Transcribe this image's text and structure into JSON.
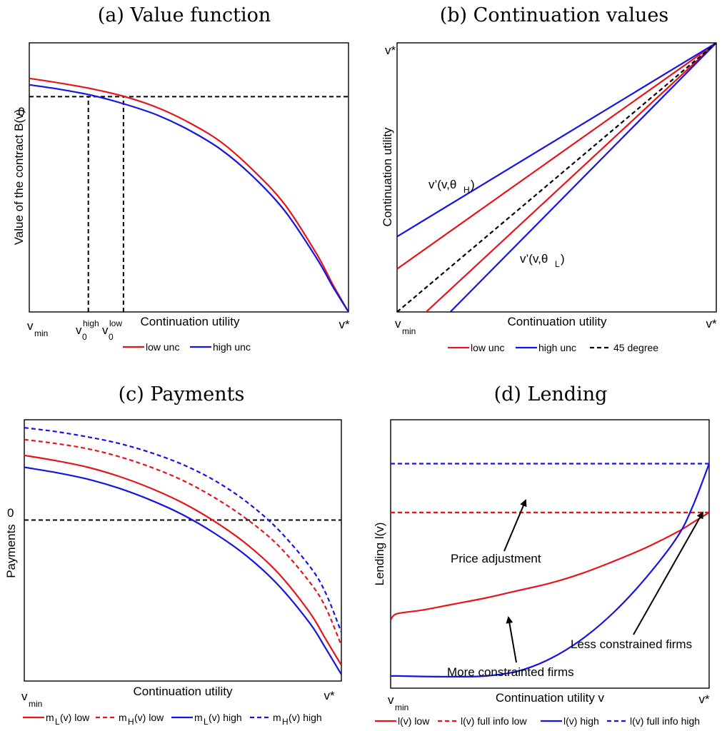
{
  "colors": {
    "low": "#e8141c",
    "high": "#1414e6",
    "ref": "#000000"
  },
  "chart_data": [
    {
      "type": "line",
      "title": "(a) Value function",
      "xlabel": "Continuation utility",
      "ylabel": "Value of the contract B(v)",
      "x_ticks": {
        "vmin": "v",
        "vmin_sub": "min",
        "vstar": "v*",
        "v0high": "v",
        "v0high_sup": "high",
        "v0high_sub": "0",
        "v0low": "v",
        "v0low_sup": "low",
        "v0low_sub": "0"
      },
      "y_ticks": {
        "zero": "0"
      },
      "x": [
        0,
        0.1,
        0.2,
        0.3,
        0.4,
        0.5,
        0.6,
        0.7,
        0.8,
        0.9,
        0.95,
        1.0
      ],
      "series": [
        {
          "name": "low unc",
          "color": "low",
          "style": "solid",
          "values": [
            0.085,
            0.062,
            0.035,
            0.0,
            -0.05,
            -0.12,
            -0.21,
            -0.34,
            -0.5,
            -0.73,
            -0.87,
            -1.0
          ]
        },
        {
          "name": "high unc",
          "color": "high",
          "style": "solid",
          "values": [
            0.055,
            0.033,
            0.005,
            -0.035,
            -0.085,
            -0.155,
            -0.245,
            -0.37,
            -0.53,
            -0.75,
            -0.88,
            -1.0
          ]
        }
      ],
      "reference_lines": [
        {
          "type": "hline",
          "y": 0,
          "style": "dashed"
        },
        {
          "type": "vline",
          "x": 0.185,
          "label": "v0high",
          "style": "dashed"
        },
        {
          "type": "vline",
          "x": 0.295,
          "label": "v0low",
          "style": "dashed"
        }
      ],
      "legend": [
        "low unc",
        "high unc"
      ],
      "legend_placement": "bottom"
    },
    {
      "type": "line",
      "title": "(b) Continuation values",
      "xlabel": "Continuation utility",
      "ylabel": "Continuation utility",
      "x_ticks": {
        "vmin": "v",
        "vmin_sub": "min",
        "vstar": "v*"
      },
      "y_ticks": {
        "vstar": "v*"
      },
      "x": [
        0,
        1
      ],
      "series": [
        {
          "name": "low unc θH",
          "color": "low",
          "style": "solid",
          "values": [
            0.16,
            1.0
          ]
        },
        {
          "name": "high unc θH",
          "color": "high",
          "style": "solid",
          "values": [
            0.28,
            1.0
          ]
        },
        {
          "name": "low unc θL",
          "color": "low",
          "style": "solid",
          "values": [
            -0.1,
            1.0
          ]
        },
        {
          "name": "high unc θL",
          "color": "high",
          "style": "solid",
          "values": [
            -0.2,
            1.0
          ]
        },
        {
          "name": "45 degree",
          "color": "ref",
          "style": "dashed",
          "values": [
            0,
            1.0
          ]
        }
      ],
      "annotations": [
        {
          "text": "v’(v,θ",
          "sub": "H",
          "close": ")"
        },
        {
          "text": "v’(v,θ",
          "sub": "L",
          "close": ")"
        }
      ],
      "legend": [
        "low unc",
        "high unc",
        "45 degree"
      ],
      "legend_placement": "bottom"
    },
    {
      "type": "line",
      "title": "(c) Payments",
      "xlabel": "Continuation utility",
      "ylabel": "Payments",
      "x_ticks": {
        "vmin": "v",
        "vmin_sub": "min",
        "vstar": "v*"
      },
      "y_ticks": {
        "zero": "0"
      },
      "x": [
        0,
        0.1,
        0.2,
        0.3,
        0.4,
        0.5,
        0.6,
        0.7,
        0.8,
        0.9,
        0.95,
        1.0
      ],
      "series": [
        {
          "name": "m_L(v) low",
          "color": "low",
          "style": "solid",
          "values": [
            0.49,
            0.45,
            0.4,
            0.33,
            0.24,
            0.13,
            -0.01,
            -0.18,
            -0.4,
            -0.7,
            -0.9,
            -1.1
          ]
        },
        {
          "name": "m_H(v) low",
          "color": "low",
          "style": "dashed",
          "values": [
            0.61,
            0.58,
            0.54,
            0.48,
            0.4,
            0.3,
            0.17,
            0.01,
            -0.19,
            -0.47,
            -0.66,
            -0.95
          ]
        },
        {
          "name": "m_L(v) high",
          "color": "high",
          "style": "solid",
          "values": [
            0.4,
            0.36,
            0.31,
            0.24,
            0.15,
            0.04,
            -0.1,
            -0.27,
            -0.49,
            -0.78,
            -0.97,
            -1.17
          ]
        },
        {
          "name": "m_H(v) high",
          "color": "high",
          "style": "dashed",
          "values": [
            0.7,
            0.67,
            0.63,
            0.58,
            0.51,
            0.42,
            0.3,
            0.14,
            -0.07,
            -0.35,
            -0.55,
            -0.85
          ]
        }
      ],
      "reference_lines": [
        {
          "type": "hline",
          "y": 0,
          "style": "dashed"
        }
      ],
      "legend": [
        {
          "m": "m",
          "sub": "L",
          "rest": "(v) low"
        },
        {
          "m": "m",
          "sub": "H",
          "rest": "(v) low"
        },
        {
          "m": "m",
          "sub": "L",
          "rest": "(v) high"
        },
        {
          "m": "m",
          "sub": "H",
          "rest": "(v) high"
        }
      ],
      "legend_placement": "bottom"
    },
    {
      "type": "line",
      "title": "(d) Lending",
      "xlabel": "Continuation utility v",
      "ylabel": "Lending l(v)",
      "x_ticks": {
        "vmin": "v",
        "vmin_sub": "min",
        "vstar": "v*"
      },
      "x": [
        0,
        0.02,
        0.1,
        0.2,
        0.3,
        0.4,
        0.5,
        0.6,
        0.7,
        0.8,
        0.9,
        0.95,
        1.0
      ],
      "series": [
        {
          "name": "l(v) low",
          "color": "low",
          "style": "solid",
          "values": [
            0.28,
            0.305,
            0.32,
            0.345,
            0.37,
            0.4,
            0.43,
            0.47,
            0.52,
            0.575,
            0.64,
            0.68,
            0.72
          ]
        },
        {
          "name": "l(v) full info low",
          "color": "low",
          "style": "dashed",
          "values": [
            0.72,
            0.72,
            0.72,
            0.72,
            0.72,
            0.72,
            0.72,
            0.72,
            0.72,
            0.72,
            0.72,
            0.72,
            0.72
          ]
        },
        {
          "name": "l(v) high",
          "color": "high",
          "style": "solid",
          "values": [
            0.05,
            0.05,
            0.048,
            0.047,
            0.05,
            0.07,
            0.12,
            0.2,
            0.31,
            0.45,
            0.62,
            0.75,
            0.92
          ]
        },
        {
          "name": "l(v) full info high",
          "color": "high",
          "style": "dashed",
          "values": [
            0.92,
            0.92,
            0.92,
            0.92,
            0.92,
            0.92,
            0.92,
            0.92,
            0.92,
            0.92,
            0.92,
            0.92,
            0.92
          ]
        }
      ],
      "annotations": [
        "Price adjustment",
        "More constrainted firms",
        "Less constrained firms"
      ],
      "legend": [
        "l(v) low",
        "l(v) full info low",
        "l(v) high",
        "l(v) full info high"
      ],
      "legend_placement": "bottom"
    }
  ]
}
